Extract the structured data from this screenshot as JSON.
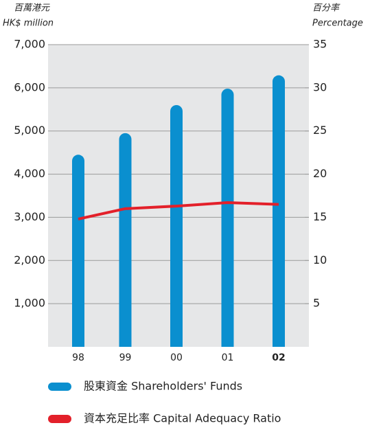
{
  "chart_data": {
    "type": "bar_line",
    "y_label": [
      "百萬港元",
      "HK$ million"
    ],
    "y2_label": [
      "百分率",
      "Percentage"
    ],
    "categories": [
      "98",
      "99",
      "00",
      "01",
      "02"
    ],
    "series": [
      {
        "name": "股東資金 Shareholders' Funds",
        "type": "bar",
        "color": "#0a8fcf",
        "values": [
          4450,
          4950,
          5600,
          5980,
          6290
        ]
      },
      {
        "name": "資本充足比率 Capital Adequacy Ratio",
        "type": "line",
        "axis": "y2",
        "color": "#e3202a",
        "values": [
          14.8,
          16.0,
          16.3,
          16.7,
          16.5
        ]
      }
    ],
    "ylim": [
      0,
      7000
    ],
    "yticks": [
      {
        "value": 1000,
        "label": "1,000"
      },
      {
        "value": 2000,
        "label": "2,000"
      },
      {
        "value": 3000,
        "label": "3,000"
      },
      {
        "value": 4000,
        "label": "4,000"
      },
      {
        "value": 5000,
        "label": "5,000"
      },
      {
        "value": 6000,
        "label": "6,000"
      },
      {
        "value": 7000,
        "label": "7,000"
      }
    ],
    "y2lim": [
      0,
      35
    ],
    "y2ticks": [
      5,
      10,
      15,
      20,
      25,
      30,
      35
    ],
    "grid": true
  }
}
